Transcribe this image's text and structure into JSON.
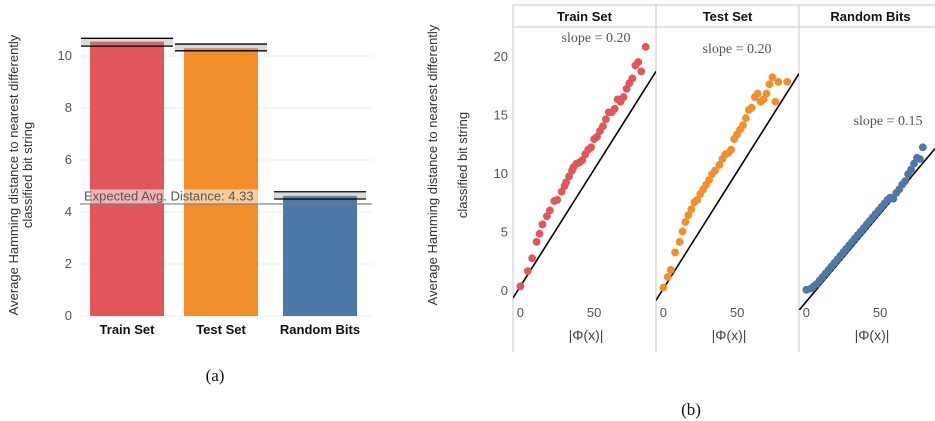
{
  "chart_data": [
    {
      "id": "a",
      "type": "bar",
      "categories": [
        "Train Set",
        "Test Set",
        "Random Bits"
      ],
      "values": [
        10.55,
        10.3,
        4.62
      ],
      "error_ranges": [
        [
          10.38,
          10.68
        ],
        [
          10.2,
          10.46
        ],
        [
          4.5,
          4.78
        ]
      ],
      "colors": [
        "#e15759",
        "#f28e2b",
        "#4e79a7"
      ],
      "ylabel": "Average Hamming distance to nearest differently classified bit string",
      "ylim": [
        0,
        11.0
      ],
      "yticks": [
        0,
        2,
        4,
        6,
        8,
        10
      ],
      "hline": {
        "value": 4.33,
        "label": "Expected Avg. Distance: 4.33"
      },
      "caption": "(a)",
      "grid": true
    },
    {
      "id": "b",
      "type": "scatter",
      "ylabel": "Average Hamming distance to nearest differently classified bit string",
      "xlabel": "|Φ(x)|",
      "xlim": [
        -5,
        92
      ],
      "ylim": [
        -1.3,
        22.5
      ],
      "xticks": [
        0,
        50
      ],
      "yticks": [
        0,
        5,
        10,
        15,
        20
      ],
      "caption": "(b)",
      "panels": [
        {
          "title": "Train Set",
          "color": "#e15759",
          "slope_label": "slope = 0.20",
          "fit": {
            "slope": 0.2,
            "intercept": 0.3
          },
          "x": [
            0,
            5,
            8,
            11,
            13,
            15,
            18,
            20,
            23,
            25,
            28,
            30,
            31,
            33,
            35,
            36,
            38,
            40,
            42,
            44,
            46,
            48,
            50,
            52,
            54,
            56,
            58,
            60,
            62,
            64,
            66,
            68,
            70,
            72,
            74,
            76,
            78,
            80,
            82,
            85
          ],
          "y": [
            0.3,
            1.6,
            2.7,
            4.1,
            4.8,
            5.6,
            6.3,
            6.8,
            7.6,
            7.7,
            8.4,
            8.9,
            9.2,
            9.7,
            10.2,
            10.5,
            10.8,
            10.9,
            11.1,
            11.6,
            12,
            12.2,
            12.9,
            13.1,
            13.6,
            14,
            14.6,
            15.2,
            15.2,
            15.5,
            16.3,
            16.1,
            16.5,
            17.2,
            17.7,
            18.1,
            19.2,
            19.5,
            18.7,
            20.8
          ]
        },
        {
          "title": "Test Set",
          "color": "#f28e2b",
          "slope_label": "slope = 0.20",
          "fit": {
            "slope": 0.2,
            "intercept": 0.1
          },
          "x": [
            0,
            3,
            5,
            8,
            11,
            13,
            15,
            17,
            19,
            21,
            23,
            25,
            27,
            29,
            31,
            33,
            35,
            38,
            40,
            42,
            44,
            46,
            48,
            50,
            52,
            54,
            56,
            58,
            60,
            62,
            64,
            66,
            68,
            70,
            72,
            74,
            76,
            78,
            84
          ],
          "y": [
            0.2,
            1.1,
            1.7,
            3.2,
            4.1,
            5,
            5.8,
            6.4,
            6.9,
            7.5,
            7.7,
            8.2,
            8.6,
            9,
            9.4,
            9.9,
            10.2,
            10.7,
            11.2,
            11.6,
            11.7,
            12,
            12.9,
            13.3,
            13.7,
            14.1,
            14.7,
            15.4,
            15.6,
            16.5,
            16.8,
            16.1,
            16.3,
            16.8,
            17.6,
            18.2,
            16.1,
            17.8,
            17.8
          ]
        },
        {
          "title": "Random Bits",
          "color": "#4e79a7",
          "slope_label": "slope = 0.15",
          "fit": {
            "slope": 0.15,
            "intercept": -1
          },
          "x": [
            0,
            3,
            5,
            7,
            9,
            11,
            13,
            15,
            17,
            19,
            21,
            23,
            25,
            27,
            29,
            31,
            33,
            35,
            37,
            39,
            41,
            43,
            45,
            47,
            49,
            51,
            53,
            55,
            57,
            59,
            61,
            63,
            65,
            67,
            69,
            71,
            73,
            75,
            77,
            79
          ],
          "y": [
            0,
            0.1,
            0.3,
            0.5,
            0.8,
            1.1,
            1.4,
            1.7,
            2,
            2.3,
            2.6,
            2.9,
            3.2,
            3.5,
            3.8,
            4.1,
            4.4,
            4.7,
            5,
            5.3,
            5.6,
            5.9,
            6.2,
            6.5,
            6.8,
            7.1,
            7.4,
            7.7,
            7.9,
            7.8,
            8.3,
            8.6,
            9,
            9.3,
            9.9,
            10.3,
            10.8,
            11.3,
            11.2,
            12.2
          ]
        }
      ]
    }
  ]
}
